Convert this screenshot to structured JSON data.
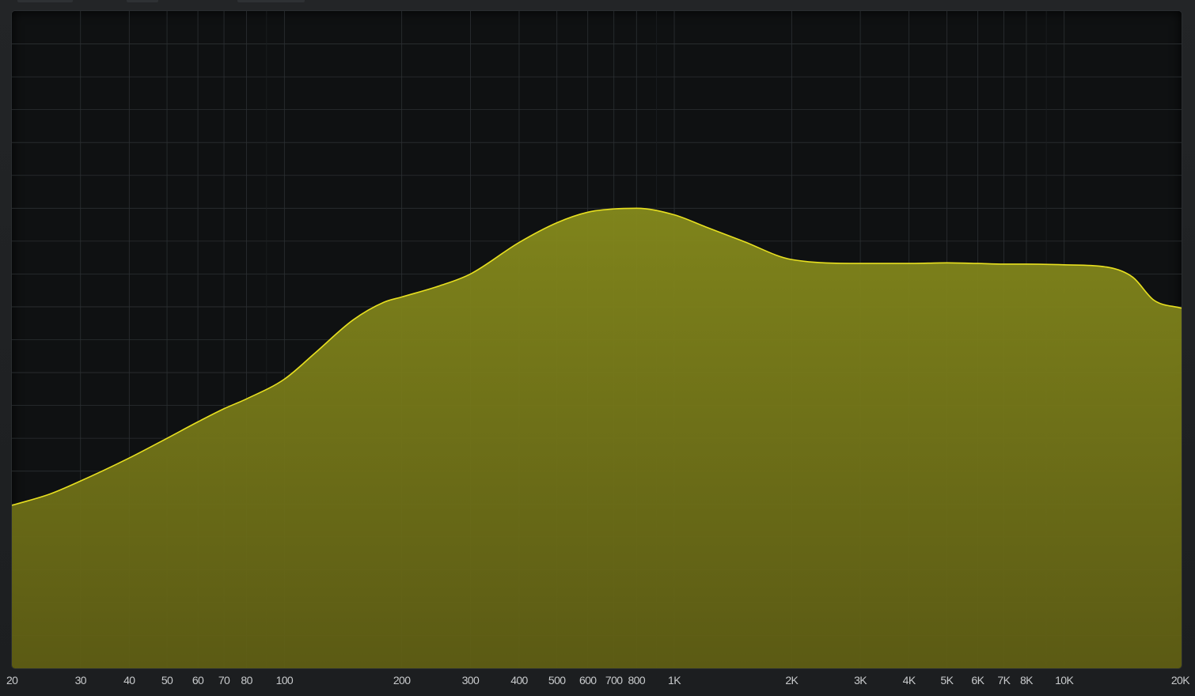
{
  "theme": {
    "background": "#1f2123",
    "panel": "#0f1112",
    "grid_major": "#2c3033",
    "grid_minor": "#1c1f21",
    "curve_stroke": "#e8e020",
    "fill_top": "#858a1c",
    "fill_bottom": "#5f5e14"
  },
  "freq_axis": {
    "labels": [
      "20",
      "30",
      "40",
      "50",
      "60",
      "70",
      "80",
      "100",
      "200",
      "300",
      "400",
      "500",
      "600",
      "700",
      "800",
      "1K",
      "2K",
      "3K",
      "4K",
      "5K",
      "6K",
      "7K",
      "8K",
      "10K",
      "20K"
    ]
  },
  "chart_data": {
    "type": "area",
    "x_scale": "log",
    "x_unit": "Hz",
    "xlim": [
      20,
      20000
    ],
    "ylim": [
      0,
      1
    ],
    "x": [
      20,
      25,
      30,
      40,
      50,
      60,
      70,
      80,
      100,
      120,
      150,
      180,
      200,
      250,
      300,
      400,
      500,
      600,
      700,
      800,
      1000,
      1200,
      1500,
      2000,
      3000,
      4000,
      5000,
      6000,
      7000,
      8000,
      10000,
      13000,
      15000,
      17000,
      20000
    ],
    "y": [
      0.248,
      0.265,
      0.285,
      0.32,
      0.35,
      0.375,
      0.395,
      0.41,
      0.44,
      0.48,
      0.53,
      0.557,
      0.565,
      0.582,
      0.6,
      0.648,
      0.678,
      0.694,
      0.699,
      0.7,
      0.69,
      0.672,
      0.65,
      0.622,
      0.616,
      0.616,
      0.617,
      0.616,
      0.615,
      0.615,
      0.614,
      0.61,
      0.595,
      0.56,
      0.548
    ]
  }
}
